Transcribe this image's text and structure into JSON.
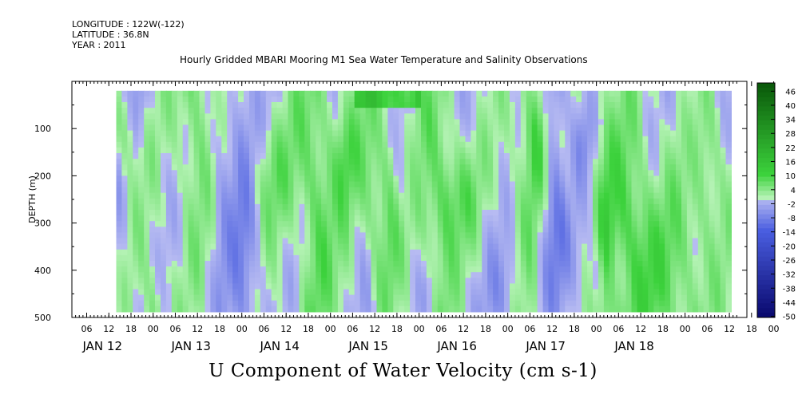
{
  "header": {
    "longitude": "LONGITUDE : 122W(-122)",
    "latitude": "LATITUDE : 36.8N",
    "year": "YEAR : 2011"
  },
  "chart_data": {
    "type": "heatmap",
    "title": "Hourly Gridded MBARI Mooring M1 Sea Water Temperature and Salinity Observations",
    "xlabel": "U Component of Water Velocity (cm s-1)",
    "ylabel": "DEPTH (m)",
    "ylim": [
      0,
      500
    ],
    "y_inverted": true,
    "y_ticks": [
      100,
      200,
      300,
      400,
      500
    ],
    "x_hour_labels": [
      "06",
      "12",
      "18",
      "00",
      "06",
      "12",
      "18",
      "00",
      "06",
      "12",
      "18",
      "00",
      "06",
      "12",
      "18",
      "00",
      "06",
      "12",
      "18",
      "00",
      "06",
      "12",
      "18",
      "00",
      "06",
      "12",
      "18",
      "00",
      "06",
      "12",
      "18",
      "00"
    ],
    "x_day_labels": [
      "JAN 12",
      "JAN 13",
      "JAN 14",
      "JAN 15",
      "JAN 16",
      "JAN 17",
      "JAN 18"
    ],
    "data_extent": {
      "x_start_hours": 8,
      "x_end_hours": 174,
      "depth_top": 20,
      "depth_bottom": 485
    },
    "colorbar": {
      "levels": [
        48,
        46,
        44,
        42,
        40,
        38,
        36,
        34,
        32,
        30,
        28,
        26,
        24,
        22,
        20,
        18,
        16,
        14,
        12,
        10,
        8,
        6,
        4,
        2,
        0,
        -2,
        -4,
        -6,
        -8,
        -10,
        -12,
        -14,
        -16,
        -18,
        -20,
        -22,
        -24,
        -26,
        -28,
        -30,
        -32,
        -34,
        -36,
        -38,
        -40,
        -42,
        -44,
        -46,
        -48,
        -50
      ],
      "tick_labels": [
        "46",
        "40",
        "34",
        "28",
        "22",
        "16",
        "10",
        "4",
        "-2",
        "-8",
        "-14",
        "-20",
        "-26",
        "-32",
        "-38",
        "-44",
        "-50"
      ]
    },
    "colors": {
      "strong_negative": "#0a0a70",
      "negative": "#4a5ee0",
      "weak_negative": "#b8bcf2",
      "weak_positive": "#b4f2b4",
      "positive": "#3cd23c",
      "strong_positive": "#0a5a0a"
    }
  }
}
